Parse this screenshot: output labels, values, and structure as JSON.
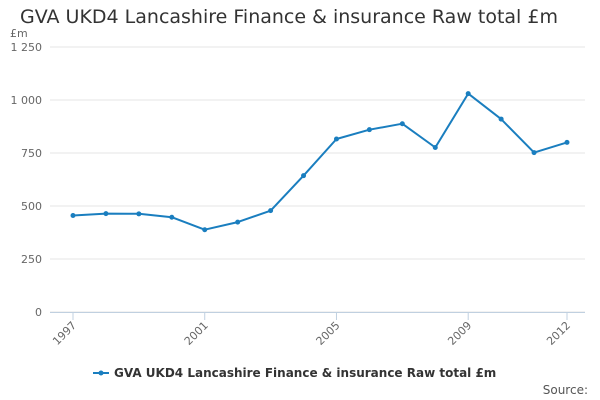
{
  "chart_data": {
    "type": "line",
    "title": "GVA UKD4 Lancashire Finance & insurance Raw total £m",
    "ylabel": "£m",
    "xlabel": "",
    "x": [
      1997,
      1998,
      1999,
      2000,
      2001,
      2002,
      2003,
      2004,
      2005,
      2006,
      2007,
      2008,
      2009,
      2010,
      2011,
      2012
    ],
    "x_tick_labels": [
      "1997",
      "2001",
      "2005",
      "2009",
      "2012"
    ],
    "x_tick_values": [
      1997,
      2001,
      2005,
      2009,
      2012
    ],
    "y_tick_values": [
      0,
      250,
      500,
      750,
      1000,
      1250
    ],
    "y_tick_labels": [
      "0",
      "250",
      "500",
      "750",
      "1 000",
      "1 250"
    ],
    "ylim": [
      0,
      1250
    ],
    "xlim": [
      1997,
      2012
    ],
    "grid": "horizontal",
    "legend_position": "bottom",
    "series": [
      {
        "name": "GVA UKD4 Lancashire Finance & insurance Raw total £m",
        "color": "#1a7ebf",
        "values": [
          455,
          464,
          463,
          447,
          388,
          424,
          478,
          643,
          816,
          860,
          888,
          776,
          1030,
          910,
          752,
          800
        ]
      }
    ]
  },
  "footer": {
    "source_label": "Source:"
  }
}
